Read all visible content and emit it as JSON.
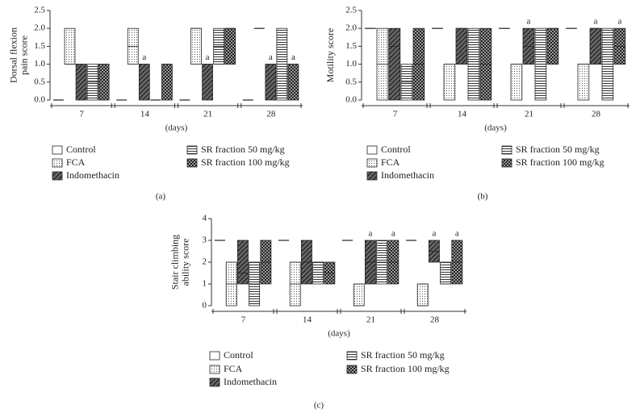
{
  "chart_data": [
    {
      "type": "box",
      "panel_label": "(a)",
      "ylabel": [
        "Dorsal flexion",
        "pain score"
      ],
      "xlabel": "(days)",
      "categories": [
        "7",
        "14",
        "21",
        "28"
      ],
      "ylim": [
        0,
        2.5
      ],
      "yticks": [
        {
          "value": 0,
          "label": "0.0"
        },
        0.5,
        {
          "value": 1,
          "label": "1.0"
        },
        1.5,
        {
          "value": 2,
          "label": "2.0"
        },
        2.5
      ],
      "series": [
        {
          "name": "Control",
          "pattern": "none",
          "low": [
            0,
            0,
            0,
            0
          ],
          "median": [
            0,
            0,
            0,
            0
          ],
          "high": [
            0,
            0,
            0,
            0
          ]
        },
        {
          "name": "FCA",
          "pattern": "dots",
          "low": [
            1,
            1,
            1,
            2
          ],
          "median": [
            1,
            1.5,
            2,
            2
          ],
          "high": [
            2,
            2,
            2,
            2
          ]
        },
        {
          "name": "Indomethacin",
          "pattern": "diagonal",
          "low": [
            0,
            0,
            0,
            0
          ],
          "median": [
            1,
            1,
            1,
            1
          ],
          "high": [
            1,
            1,
            1,
            1
          ]
        },
        {
          "name": "SR fraction 50 mg/kg",
          "pattern": "horizontal",
          "low": [
            0,
            0,
            1,
            0
          ],
          "median": [
            0.5,
            0,
            1.5,
            1
          ],
          "high": [
            1,
            0,
            2,
            2
          ]
        },
        {
          "name": "SR fraction 100 mg/kg",
          "pattern": "checker",
          "low": [
            0,
            0,
            1,
            0
          ],
          "median": [
            1,
            1,
            2,
            1
          ],
          "high": [
            1,
            1,
            2,
            1
          ]
        }
      ],
      "annotations": [
        {
          "text": "a",
          "category": "14",
          "series": "Indomethacin"
        },
        {
          "text": "a",
          "category": "21",
          "series": "Indomethacin"
        },
        {
          "text": "a",
          "category": "28",
          "series": "Indomethacin"
        },
        {
          "text": "a",
          "category": "28",
          "series": "SR fraction 100 mg/kg"
        }
      ]
    },
    {
      "type": "box",
      "panel_label": "(b)",
      "ylabel": [
        "Motility score"
      ],
      "xlabel": "(days)",
      "categories": [
        "7",
        "14",
        "21",
        "28"
      ],
      "ylim": [
        0,
        2.5
      ],
      "yticks": [
        {
          "value": 0,
          "label": "0.0"
        },
        0.5,
        {
          "value": 1,
          "label": "1.0"
        },
        1.5,
        {
          "value": 2,
          "label": "2.0"
        },
        2.5
      ],
      "series": [
        {
          "name": "Control",
          "pattern": "none",
          "low": [
            2,
            2,
            2,
            2
          ],
          "median": [
            2,
            2,
            2,
            2
          ],
          "high": [
            2,
            2,
            2,
            2
          ]
        },
        {
          "name": "FCA",
          "pattern": "dots",
          "low": [
            0,
            0,
            0,
            0
          ],
          "median": [
            1,
            1,
            1,
            1
          ],
          "high": [
            2,
            1,
            1,
            1
          ]
        },
        {
          "name": "Indomethacin",
          "pattern": "diagonal",
          "low": [
            0,
            1,
            1,
            1
          ],
          "median": [
            1.5,
            2,
            1.5,
            2
          ],
          "high": [
            2,
            2,
            2,
            2
          ]
        },
        {
          "name": "SR fraction 50 mg/kg",
          "pattern": "horizontal",
          "low": [
            0,
            0,
            0,
            0
          ],
          "median": [
            0.5,
            1,
            1,
            1
          ],
          "high": [
            1,
            2,
            2,
            2
          ]
        },
        {
          "name": "SR fraction 100 mg/kg",
          "pattern": "checker",
          "low": [
            0,
            0,
            1,
            1
          ],
          "median": [
            1,
            1,
            2,
            1.5
          ],
          "high": [
            2,
            2,
            2,
            2
          ]
        }
      ],
      "annotations": [
        {
          "text": "a",
          "category": "21",
          "series": "Indomethacin"
        },
        {
          "text": "a",
          "category": "28",
          "series": "Indomethacin"
        },
        {
          "text": "a",
          "category": "28",
          "series": "SR fraction 100 mg/kg"
        }
      ]
    },
    {
      "type": "box",
      "panel_label": "(c)",
      "ylabel": [
        "Stair climbing",
        "ability score"
      ],
      "xlabel": "(days)",
      "categories": [
        "7",
        "14",
        "21",
        "28"
      ],
      "ylim": [
        0,
        4
      ],
      "yticks": [
        0,
        1,
        2,
        3,
        4
      ],
      "series": [
        {
          "name": "Control",
          "pattern": "none",
          "low": [
            3,
            3,
            3,
            3
          ],
          "median": [
            3,
            3,
            3,
            3
          ],
          "high": [
            3,
            3,
            3,
            3
          ]
        },
        {
          "name": "FCA",
          "pattern": "dots",
          "low": [
            0,
            0,
            0,
            0
          ],
          "median": [
            1,
            1,
            0,
            0
          ],
          "high": [
            2,
            2,
            1,
            1
          ]
        },
        {
          "name": "Indomethacin",
          "pattern": "diagonal",
          "low": [
            1,
            1,
            1,
            2
          ],
          "median": [
            1.5,
            2,
            2,
            2.5
          ],
          "high": [
            3,
            3,
            3,
            3
          ]
        },
        {
          "name": "SR fraction 50 mg/kg",
          "pattern": "horizontal",
          "low": [
            0,
            1,
            1,
            1
          ],
          "median": [
            1,
            2,
            2,
            1
          ],
          "high": [
            2,
            2,
            3,
            2
          ]
        },
        {
          "name": "SR fraction 100 mg/kg",
          "pattern": "checker",
          "low": [
            1,
            1,
            1,
            1
          ],
          "median": [
            2,
            1.5,
            2,
            2
          ],
          "high": [
            3,
            2,
            3,
            3
          ]
        }
      ],
      "annotations": [
        {
          "text": "a",
          "category": "21",
          "series": "Indomethacin"
        },
        {
          "text": "a",
          "category": "21",
          "series": "SR fraction 100 mg/kg"
        },
        {
          "text": "a",
          "category": "28",
          "series": "Indomethacin"
        },
        {
          "text": "a",
          "category": "28",
          "series": "SR fraction 100 mg/kg"
        }
      ]
    }
  ]
}
